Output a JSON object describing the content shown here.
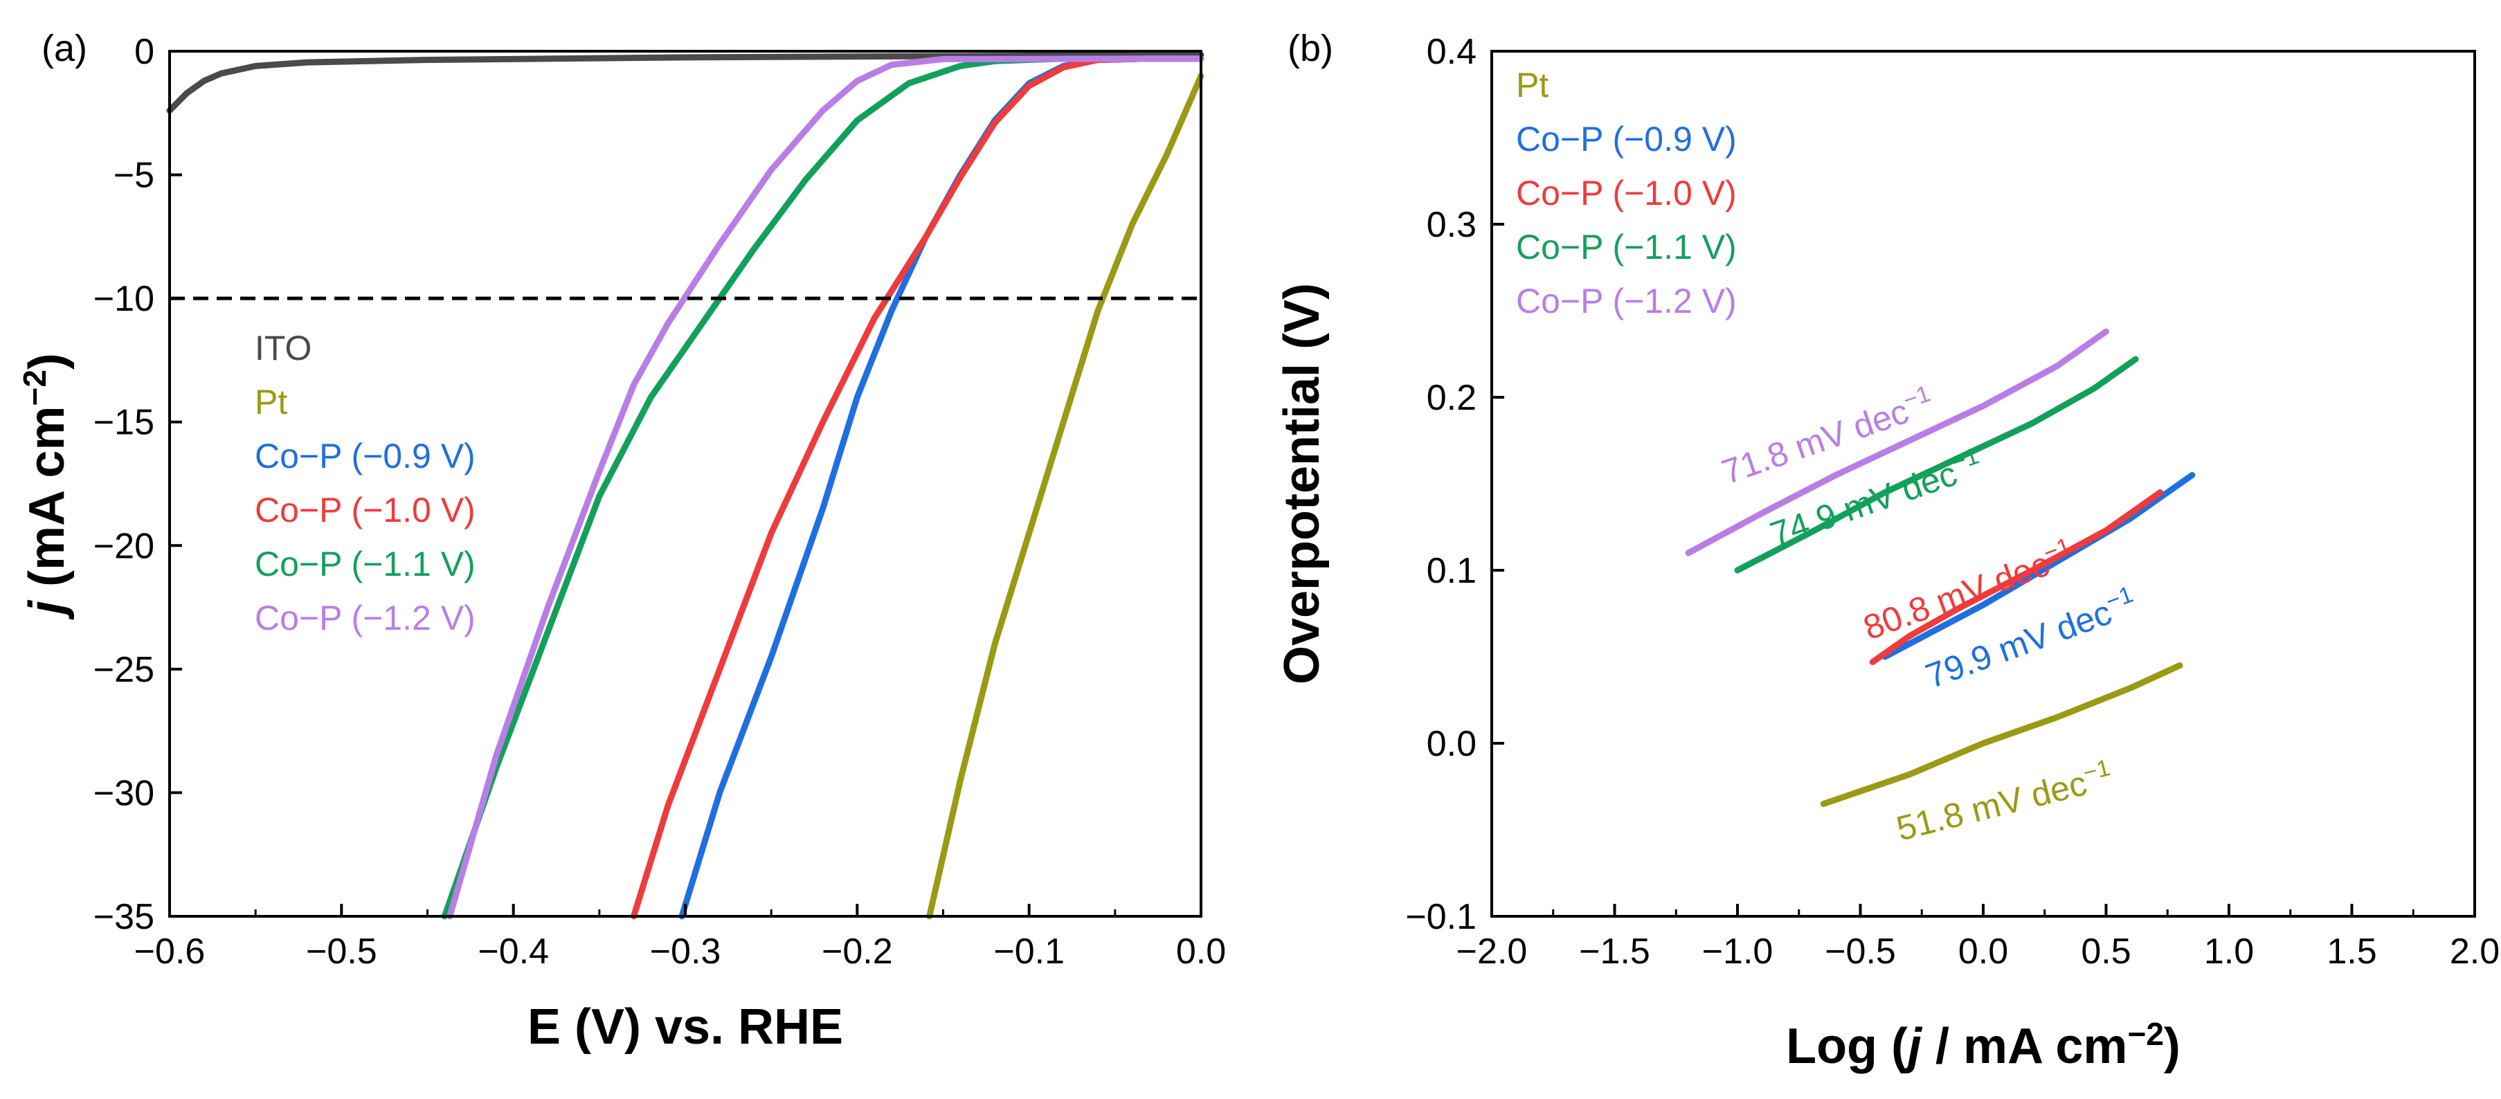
{
  "chart_data": [
    {
      "panel": "(a)",
      "type": "line",
      "xlabel": "E (V) vs. RHE",
      "ylabel": {
        "j": "j",
        "rest": " (mA cm",
        "sup": "−2",
        "close": ")"
      },
      "xlim": [
        -0.6,
        0.0
      ],
      "ylim": [
        -35,
        0
      ],
      "xticks": [
        -0.6,
        -0.5,
        -0.4,
        -0.3,
        -0.2,
        -0.1,
        0.0
      ],
      "xtick_labels": [
        "−0.6",
        "−0.5",
        "−0.4",
        "−0.3",
        "−0.2",
        "−0.1",
        "0.0"
      ],
      "yticks": [
        0,
        -5,
        -10,
        -15,
        -20,
        -25,
        -30,
        -35
      ],
      "ytick_labels": [
        "0",
        "−5",
        "−10",
        "−15",
        "−20",
        "−25",
        "−30",
        "−35"
      ],
      "reference_line": {
        "y": -10,
        "style": "dashed"
      },
      "legend": {
        "position": "left-middle",
        "items": [
          "ITO",
          "Pt",
          "Co−P (−0.9 V)",
          "Co−P (−1.0 V)",
          "Co−P (−1.1 V)",
          "Co−P (−1.2 V)"
        ]
      },
      "series": [
        {
          "name": "ITO",
          "color": "#4a4a4a",
          "points": [
            [
              -0.6,
              -2.4
            ],
            [
              -0.59,
              -1.7
            ],
            [
              -0.58,
              -1.2
            ],
            [
              -0.57,
              -0.9
            ],
            [
              -0.55,
              -0.6
            ],
            [
              -0.52,
              -0.45
            ],
            [
              -0.45,
              -0.35
            ],
            [
              -0.3,
              -0.25
            ],
            [
              -0.15,
              -0.2
            ],
            [
              0.0,
              -0.15
            ]
          ]
        },
        {
          "name": "Pt",
          "color": "#9a9a14",
          "points": [
            [
              -0.158,
              -35
            ],
            [
              -0.14,
              -29.5
            ],
            [
              -0.12,
              -24
            ],
            [
              -0.1,
              -19.5
            ],
            [
              -0.08,
              -15
            ],
            [
              -0.06,
              -10.5
            ],
            [
              -0.04,
              -7
            ],
            [
              -0.02,
              -4.2
            ],
            [
              -0.01,
              -2.6
            ],
            [
              0.0,
              -1.0
            ]
          ]
        },
        {
          "name": "Co−P (−0.9 V)",
          "color": "#1f6fe0",
          "points": [
            [
              -0.302,
              -35
            ],
            [
              -0.28,
              -30
            ],
            [
              -0.25,
              -24.5
            ],
            [
              -0.22,
              -18.5
            ],
            [
              -0.2,
              -14
            ],
            [
              -0.18,
              -10.5
            ],
            [
              -0.16,
              -7.5
            ],
            [
              -0.14,
              -5
            ],
            [
              -0.12,
              -2.8
            ],
            [
              -0.1,
              -1.3
            ],
            [
              -0.08,
              -0.6
            ],
            [
              -0.06,
              -0.35
            ],
            [
              -0.03,
              -0.3
            ],
            [
              0.0,
              -0.3
            ]
          ]
        },
        {
          "name": "Co−P (−1.0 V)",
          "color": "#ef3b3b",
          "points": [
            [
              -0.33,
              -35
            ],
            [
              -0.31,
              -30.5
            ],
            [
              -0.28,
              -25
            ],
            [
              -0.25,
              -19.5
            ],
            [
              -0.22,
              -15
            ],
            [
              -0.19,
              -10.8
            ],
            [
              -0.16,
              -7.5
            ],
            [
              -0.14,
              -5.1
            ],
            [
              -0.12,
              -2.9
            ],
            [
              -0.1,
              -1.4
            ],
            [
              -0.08,
              -0.65
            ],
            [
              -0.06,
              -0.35
            ],
            [
              -0.03,
              -0.3
            ],
            [
              0.0,
              -0.3
            ]
          ]
        },
        {
          "name": "Co−P (−1.1 V)",
          "color": "#13a05b",
          "points": [
            [
              -0.44,
              -35
            ],
            [
              -0.41,
              -29
            ],
            [
              -0.38,
              -23.5
            ],
            [
              -0.35,
              -18
            ],
            [
              -0.32,
              -14
            ],
            [
              -0.29,
              -11
            ],
            [
              -0.26,
              -8
            ],
            [
              -0.23,
              -5.2
            ],
            [
              -0.2,
              -2.8
            ],
            [
              -0.17,
              -1.3
            ],
            [
              -0.14,
              -0.6
            ],
            [
              -0.12,
              -0.4
            ],
            [
              -0.08,
              -0.3
            ],
            [
              0.0,
              -0.3
            ]
          ]
        },
        {
          "name": "Co−P (−1.2 V)",
          "color": "#b97ee6",
          "points": [
            [
              -0.437,
              -35
            ],
            [
              -0.41,
              -28.5
            ],
            [
              -0.38,
              -22.5
            ],
            [
              -0.35,
              -17
            ],
            [
              -0.33,
              -13.5
            ],
            [
              -0.31,
              -11
            ],
            [
              -0.28,
              -7.8
            ],
            [
              -0.25,
              -4.8
            ],
            [
              -0.22,
              -2.4
            ],
            [
              -0.2,
              -1.2
            ],
            [
              -0.18,
              -0.55
            ],
            [
              -0.15,
              -0.32
            ],
            [
              0.0,
              -0.3
            ]
          ]
        }
      ]
    },
    {
      "panel": "(b)",
      "type": "line",
      "xlabel": {
        "pre": "Log (",
        "j": "j",
        "mid": " / mA cm",
        "sup": "−2",
        "close": ")"
      },
      "ylabel": "Overpotential (V)",
      "xlim": [
        -2.0,
        2.0
      ],
      "ylim": [
        -0.1,
        0.4
      ],
      "xticks": [
        -2.0,
        -1.5,
        -1.0,
        -0.5,
        0.0,
        0.5,
        1.0,
        1.5,
        2.0
      ],
      "xtick_labels": [
        "−2.0",
        "−1.5",
        "−1.0",
        "−0.5",
        "0.0",
        "0.5",
        "1.0",
        "1.5",
        "2.0"
      ],
      "yticks": [
        -0.1,
        0.0,
        0.1,
        0.2,
        0.3,
        0.4
      ],
      "ytick_labels": [
        "−0.1",
        "0.0",
        "0.1",
        "0.2",
        "0.3",
        "0.4"
      ],
      "legend": {
        "position": "top-left",
        "items": [
          "Pt",
          "Co−P (−0.9 V)",
          "Co−P (−1.0 V)",
          "Co−P (−1.1 V)",
          "Co−P (−1.2 V)"
        ]
      },
      "series": [
        {
          "name": "Pt",
          "color": "#9a9a14",
          "slope_label": "51.8 mV dec",
          "points": [
            [
              -0.65,
              -0.035
            ],
            [
              -0.3,
              -0.018
            ],
            [
              0.0,
              0.0
            ],
            [
              0.3,
              0.015
            ],
            [
              0.6,
              0.032
            ],
            [
              0.8,
              0.045
            ]
          ]
        },
        {
          "name": "Co−P (−0.9 V)",
          "color": "#1f6fe0",
          "slope_label": "79.9 mV dec",
          "points": [
            [
              -0.4,
              0.05
            ],
            [
              -0.2,
              0.065
            ],
            [
              0.0,
              0.08
            ],
            [
              0.3,
              0.105
            ],
            [
              0.6,
              0.13
            ],
            [
              0.85,
              0.155
            ]
          ]
        },
        {
          "name": "Co−P (−1.0 V)",
          "color": "#ef3b3b",
          "slope_label": "80.8 mV dec",
          "points": [
            [
              -0.45,
              0.047
            ],
            [
              -0.3,
              0.062
            ],
            [
              -0.1,
              0.078
            ],
            [
              0.2,
              0.1
            ],
            [
              0.5,
              0.123
            ],
            [
              0.72,
              0.145
            ]
          ]
        },
        {
          "name": "Co−P (−1.1 V)",
          "color": "#13a05b",
          "slope_label": "74.9 mV dec",
          "points": [
            [
              -1.0,
              0.1
            ],
            [
              -0.7,
              0.122
            ],
            [
              -0.4,
              0.145
            ],
            [
              -0.1,
              0.165
            ],
            [
              0.2,
              0.185
            ],
            [
              0.45,
              0.205
            ],
            [
              0.62,
              0.222
            ]
          ]
        },
        {
          "name": "Co−P (−1.2 V)",
          "color": "#b97ee6",
          "slope_label": "71.8 mV dec",
          "points": [
            [
              -1.2,
              0.11
            ],
            [
              -0.9,
              0.133
            ],
            [
              -0.6,
              0.155
            ],
            [
              -0.3,
              0.175
            ],
            [
              0.0,
              0.195
            ],
            [
              0.3,
              0.218
            ],
            [
              0.5,
              0.238
            ]
          ]
        }
      ],
      "slope_sup": "−1"
    }
  ]
}
